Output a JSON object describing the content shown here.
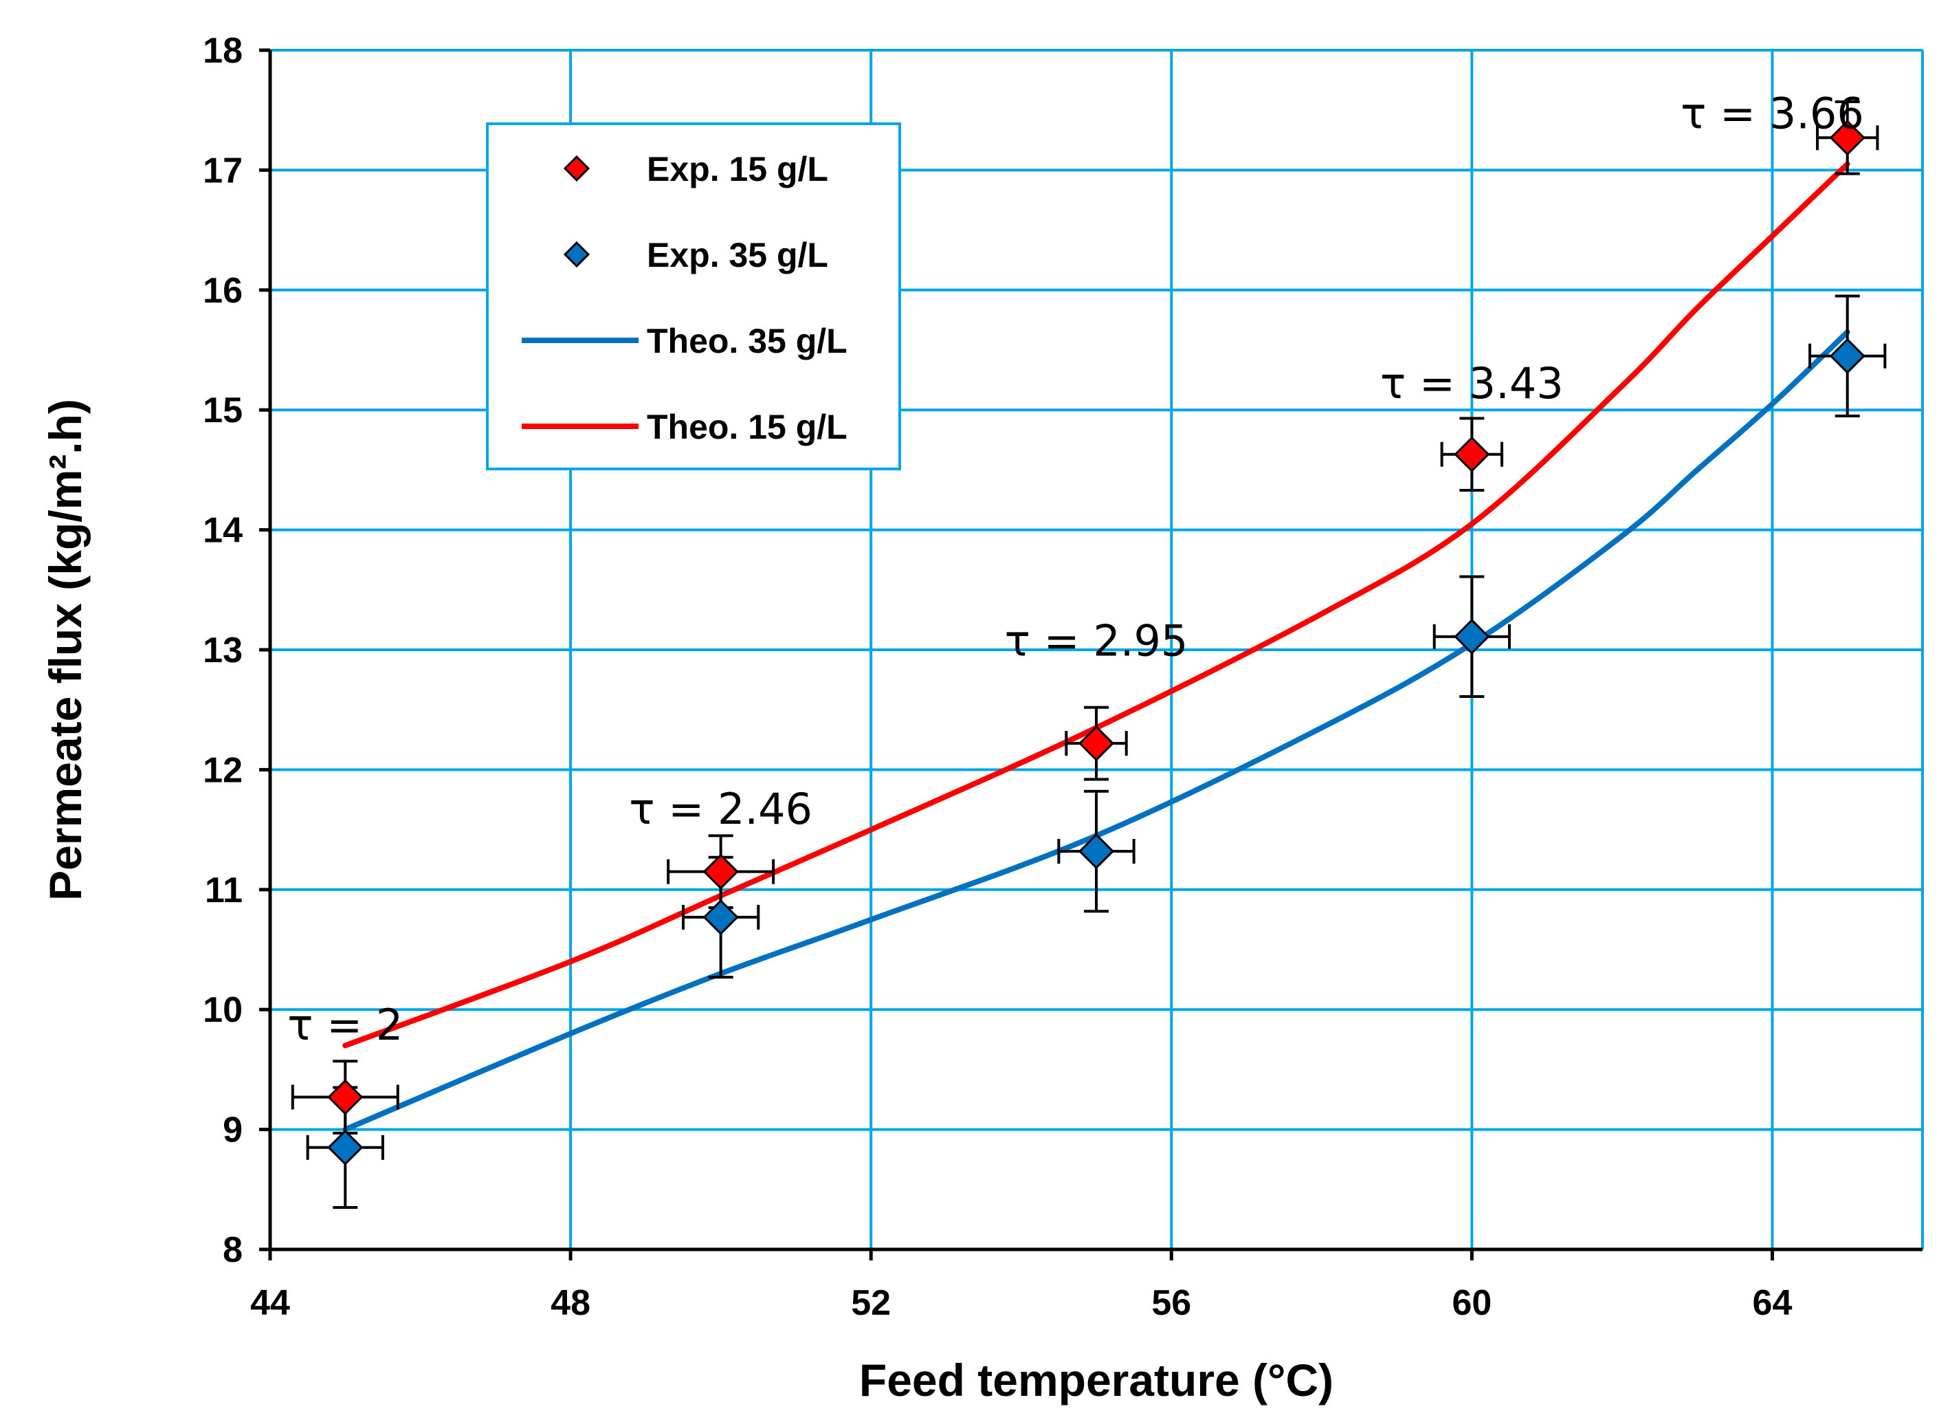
{
  "chart_data": {
    "type": "scatter",
    "title": "",
    "xlabel": "Feed temperature (°C)",
    "ylabel": "Permeate flux (kg/m².h)",
    "xlim": [
      44,
      66
    ],
    "ylim": [
      8,
      18
    ],
    "xticks": [
      44,
      48,
      52,
      56,
      60,
      64
    ],
    "yticks": [
      8,
      9,
      10,
      11,
      12,
      13,
      14,
      15,
      16,
      17,
      18
    ],
    "grid": true,
    "grid_color": "#00a6e6",
    "legend_position": "top-left",
    "series": [
      {
        "name": "Exp. 15 g/L",
        "kind": "marker",
        "color": "#ff0000",
        "x": [
          45,
          50,
          55,
          60,
          65
        ],
        "y": [
          9.27,
          11.15,
          12.22,
          14.63,
          17.27
        ],
        "yerr": [
          0.3,
          0.3,
          0.3,
          0.3,
          0.3
        ],
        "xerr": [
          0.7,
          0.7,
          0.4,
          0.4,
          0.4
        ]
      },
      {
        "name": "Exp. 35 g/L",
        "kind": "marker",
        "color": "#0070c0",
        "x": [
          45,
          50,
          55,
          60,
          65
        ],
        "y": [
          8.85,
          10.77,
          11.32,
          13.11,
          15.45
        ],
        "yerr": [
          0.5,
          0.5,
          0.5,
          0.5,
          0.5
        ],
        "xerr": [
          0.5,
          0.5,
          0.5,
          0.5,
          0.5
        ]
      },
      {
        "name": "Theo. 35 g/L",
        "kind": "line",
        "color": "#0070c0",
        "x": [
          45,
          48,
          50,
          52,
          55,
          58,
          60,
          62,
          63,
          64,
          65
        ],
        "y": [
          9.0,
          9.8,
          10.3,
          10.75,
          11.45,
          12.35,
          13.05,
          13.95,
          14.5,
          15.05,
          15.65
        ]
      },
      {
        "name": "Theo. 15 g/L",
        "kind": "line",
        "color": "#ff0000",
        "x": [
          45,
          48,
          50,
          52,
          55,
          58,
          60,
          62,
          63,
          64,
          65
        ],
        "y": [
          9.7,
          10.4,
          10.95,
          11.5,
          12.35,
          13.3,
          14.05,
          15.2,
          15.85,
          16.45,
          17.05
        ]
      }
    ],
    "annotations": [
      {
        "text": "τ = 2",
        "x": 45,
        "y": 9.75
      },
      {
        "text": "τ = 2.46",
        "x": 50,
        "y": 11.55
      },
      {
        "text": "τ = 2.95",
        "x": 55,
        "y": 12.95
      },
      {
        "text": "τ = 3.43",
        "x": 60,
        "y": 15.1
      },
      {
        "text": "τ = 3.66",
        "x": 64,
        "y": 17.35
      }
    ]
  }
}
